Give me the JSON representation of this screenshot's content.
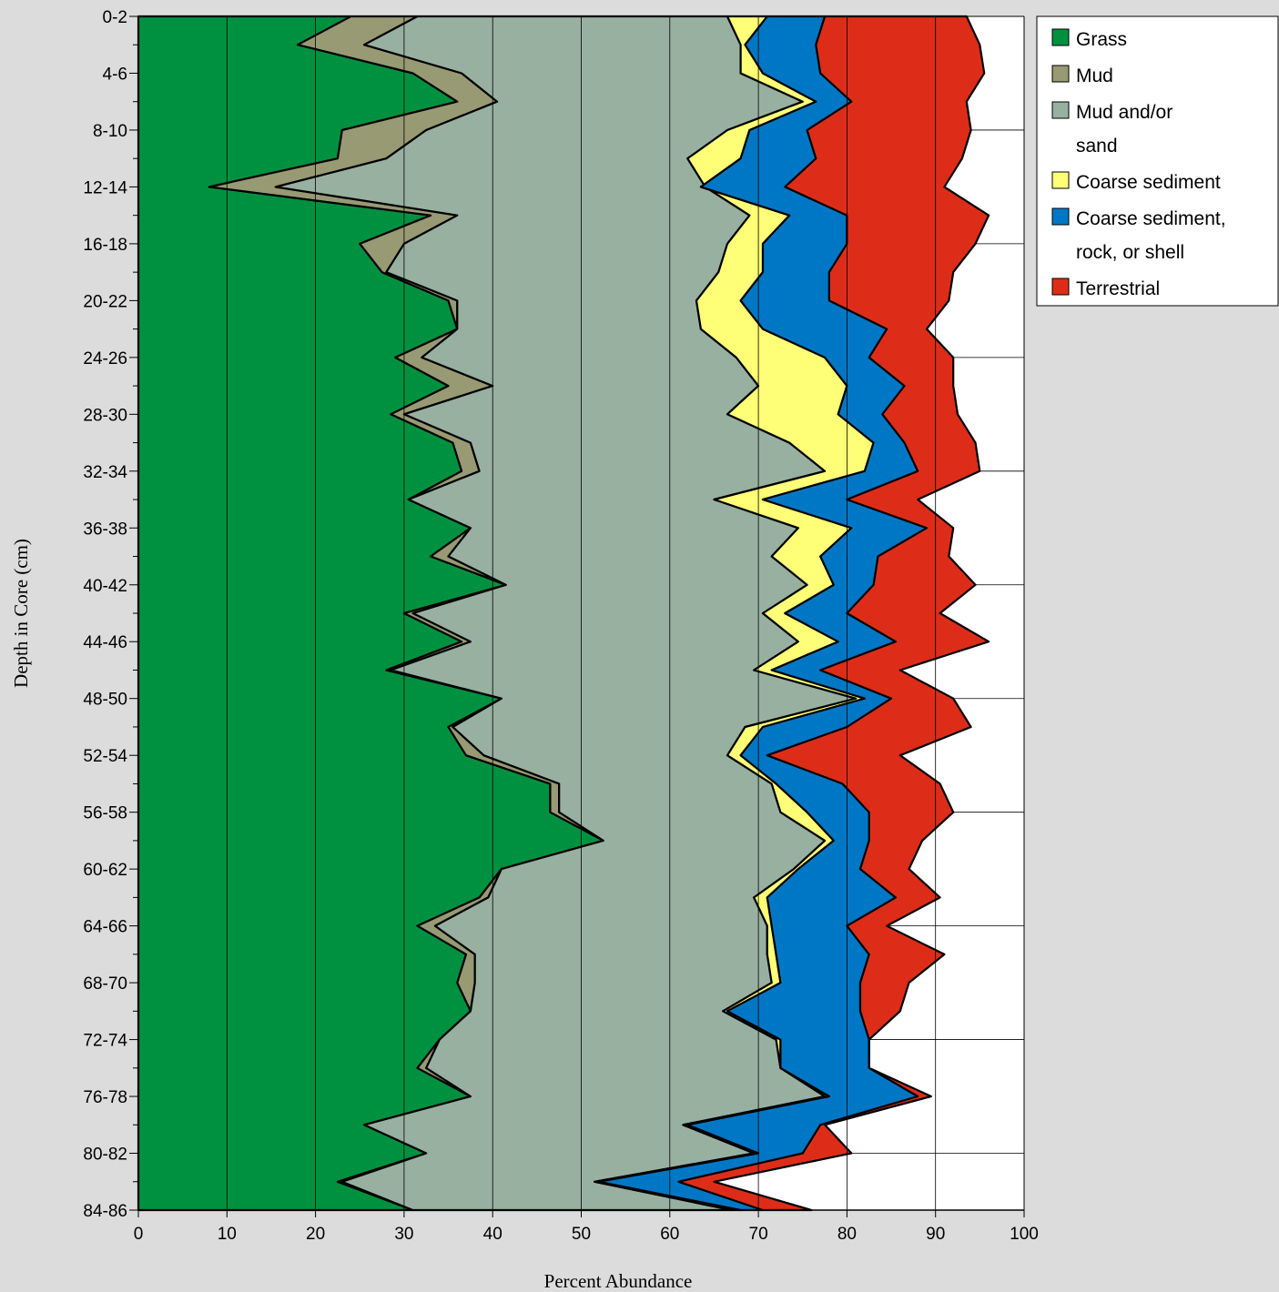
{
  "chart_data": {
    "type": "area",
    "orientation": "horizontal-stacked",
    "xlabel": "Percent Abundance",
    "ylabel": "Depth in Core (cm)",
    "xlim": [
      0,
      100
    ],
    "xticks": [
      0,
      10,
      20,
      30,
      40,
      50,
      60,
      70,
      80,
      90,
      100
    ],
    "depth_labels": [
      "0-2",
      "4-6",
      "8-10",
      "12-14",
      "16-18",
      "20-22",
      "24-26",
      "28-30",
      "32-34",
      "36-38",
      "40-42",
      "44-46",
      "48-50",
      "52-54",
      "56-58",
      "60-62",
      "64-66",
      "68-70",
      "72-74",
      "76-78",
      "80-82",
      "84-86"
    ],
    "depths": [
      "0-2",
      "2-4",
      "4-6",
      "6-8",
      "8-10",
      "10-12",
      "12-14",
      "14-16",
      "16-18",
      "18-20",
      "20-22",
      "22-24",
      "24-26",
      "26-28",
      "28-30",
      "30-32",
      "32-34",
      "34-36",
      "36-38",
      "38-40",
      "40-42",
      "42-44",
      "44-46",
      "46-48",
      "48-50",
      "50-52",
      "52-54",
      "54-56",
      "56-58",
      "58-60",
      "60-62",
      "62-64",
      "64-66",
      "66-68",
      "68-70",
      "70-72",
      "72-74",
      "74-76",
      "76-78",
      "78-80",
      "80-82",
      "82-84",
      "84-86"
    ],
    "legend_position": "top-right",
    "grid": "vertical",
    "series": [
      {
        "name": "Grass",
        "color": "#009140",
        "cumulative": [
          24,
          18,
          31,
          36,
          23,
          22.5,
          8,
          33,
          25,
          27.5,
          35,
          36,
          29,
          35,
          28.5,
          35.5,
          36.5,
          30.5,
          37.5,
          33,
          41.5,
          30,
          36.5,
          28,
          41,
          35,
          37,
          46.5,
          46.5,
          52.5,
          41,
          38.5,
          31.5,
          37,
          36,
          37.5,
          34,
          31.5,
          37.5,
          25.5,
          32.5,
          22.5,
          31
        ]
      },
      {
        "name": "Mud",
        "color": "#979a72",
        "cumulative": [
          31.5,
          25.5,
          36.5,
          40.5,
          32.5,
          28,
          15.5,
          36,
          30,
          28,
          36,
          36,
          32,
          40,
          30,
          37.5,
          38.5,
          30.5,
          37.5,
          35,
          41.5,
          31,
          37.5,
          28.5,
          41,
          35.5,
          39,
          47.5,
          47.5,
          52.5,
          41,
          39.5,
          33.5,
          38,
          38,
          37.5,
          34,
          32.5,
          37.5,
          25.5,
          32.5,
          23,
          31
        ]
      },
      {
        "name": "Mud and/or\nsand",
        "color": "#98b0a0",
        "cumulative": [
          66.5,
          68,
          68,
          75,
          66.5,
          62,
          64,
          69,
          66.5,
          65.5,
          63,
          63.5,
          67.5,
          70,
          66.5,
          73.5,
          77.5,
          65,
          74.5,
          71.5,
          75.5,
          70.5,
          74.5,
          69.5,
          81,
          68.5,
          66.5,
          71.5,
          72.5,
          77.5,
          74,
          69.5,
          71,
          71,
          71.5,
          66,
          72,
          72.5,
          77.5,
          61.5,
          69.5,
          51.5,
          67
        ]
      },
      {
        "name": "Coarse sediment",
        "color": "#ffff77",
        "cumulative": [
          71,
          68.5,
          70.5,
          76.5,
          69,
          68,
          63.5,
          73.5,
          70.5,
          70.5,
          68,
          70.5,
          77.5,
          80,
          79,
          83,
          82,
          70.5,
          80.5,
          77,
          78.5,
          73,
          79,
          71.5,
          82,
          70.5,
          68,
          72,
          75.5,
          78.5,
          74.5,
          71,
          71.5,
          72,
          72.5,
          66.5,
          72.5,
          72.5,
          78,
          62,
          70,
          52,
          68
        ]
      },
      {
        "name": "Coarse sediment,\nrock, or shell",
        "color": "#0077c5",
        "cumulative": [
          77.5,
          76.5,
          77,
          80.5,
          75.5,
          76.5,
          73,
          80,
          80,
          78,
          78,
          84.5,
          82.5,
          86.5,
          84,
          86.5,
          88,
          80,
          89,
          83.5,
          83,
          80,
          85.5,
          77,
          85,
          80,
          71,
          79.5,
          82.5,
          82.5,
          81.5,
          85.5,
          80,
          82.5,
          81.5,
          81.5,
          82.5,
          82.5,
          88,
          77,
          75,
          61,
          70.5
        ]
      },
      {
        "name": "Terrestrial",
        "color": "#dd2d19",
        "cumulative": [
          93.5,
          95,
          95.5,
          93.5,
          94,
          93,
          91,
          96,
          94.5,
          92,
          91.5,
          89,
          92,
          92,
          92.5,
          94.5,
          95,
          88,
          92,
          91.5,
          94.5,
          90.5,
          96,
          86,
          92,
          94,
          86,
          90.5,
          92,
          88.5,
          87,
          90.5,
          84.5,
          91,
          87,
          86,
          82.5,
          82.5,
          89.5,
          77.5,
          80.5,
          65,
          76
        ]
      }
    ]
  }
}
